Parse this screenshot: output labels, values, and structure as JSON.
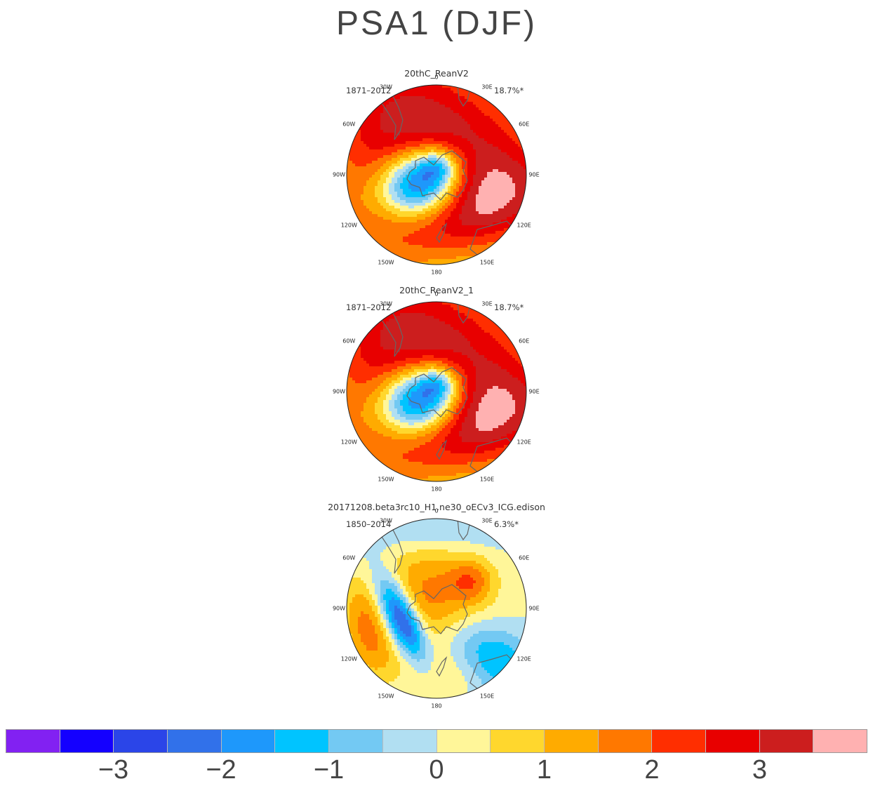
{
  "title": "PSA1 (DJF)",
  "panels": [
    {
      "title": "20thC_ReanV2",
      "period": "1871–2012",
      "variance": "18.7%*",
      "variant": "rean"
    },
    {
      "title": "20thC_ReanV2_1",
      "period": "1871–2012",
      "variance": "18.7%*",
      "variant": "rean"
    },
    {
      "title": "20171208.beta3rc10_H1.ne30_oECv3_ICG.edison",
      "period": "1850–2014",
      "variance": "6.3%*",
      "variant": "model"
    }
  ],
  "longitude_labels": [
    "0",
    "30E",
    "60E",
    "90E",
    "120E",
    "150E",
    "180",
    "150W",
    "120W",
    "90W",
    "60W",
    "30W"
  ],
  "colorbar": {
    "colors": [
      "#8221f2",
      "#1400ff",
      "#2b45e8",
      "#3171ea",
      "#1e98fb",
      "#00c4ff",
      "#73c9f3",
      "#b1dff2",
      "#fff699",
      "#ffd72d",
      "#ffab00",
      "#ff7800",
      "#ff2e00",
      "#e80000",
      "#cc1e1e",
      "#ffb1b1"
    ],
    "ticks": [
      "−3",
      "−2",
      "−1",
      "0",
      "1",
      "2",
      "3"
    ],
    "tick_values": [
      -3,
      -2,
      -1,
      0,
      1,
      2,
      3
    ],
    "range": [
      -4,
      4
    ]
  },
  "chart_data": {
    "type": "heatmap",
    "title": "PSA1 (DJF)",
    "projection": "south-polar-stereographic",
    "panels": [
      "20thC_ReanV2",
      "20thC_ReanV2_1",
      "20171208.beta3rc10_H1.ne30_oECv3_ICG.edison"
    ],
    "contour_levels": [
      -3.5,
      -3,
      -2.5,
      -2,
      -1.5,
      -1,
      -0.5,
      0,
      0.5,
      1,
      1.5,
      2,
      2.5,
      3,
      3.5
    ],
    "colorbar_ticks": [
      -3,
      -2,
      -1,
      0,
      1,
      2,
      3
    ]
  }
}
